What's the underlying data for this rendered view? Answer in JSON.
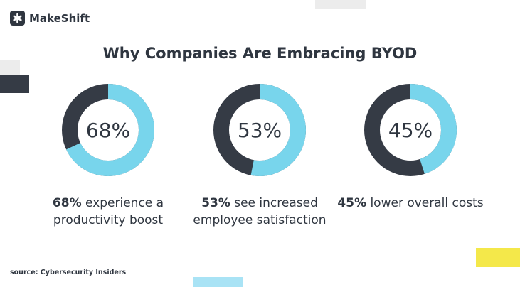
{
  "brand": {
    "name": "MakeShift",
    "logo_icon": "asterisk-icon"
  },
  "chart_data": {
    "type": "donut",
    "title": "Why Companies Are Embracing BYOD",
    "series": [
      {
        "value": 68,
        "label": "68%",
        "caption_bold": "68%",
        "caption_rest": " experience a productivity boost"
      },
      {
        "value": 53,
        "label": "53%",
        "caption_bold": "53%",
        "caption_rest": " see increased employee satisfaction"
      },
      {
        "value": 45,
        "label": "45%",
        "caption_bold": "45%",
        "caption_rest": " lower overall costs"
      }
    ],
    "colors": {
      "filled": "#78d5ec",
      "remaining": "#353b45"
    },
    "max": 100
  },
  "source": "source: Cybersecurity Insiders"
}
